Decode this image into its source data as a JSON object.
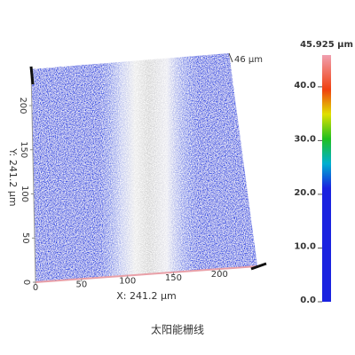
{
  "surface": {
    "height_label": "46 µm",
    "x_axis": {
      "label": "X: 241.2 µm",
      "max": 241.2,
      "ticks": [
        0,
        50,
        100,
        150,
        200
      ]
    },
    "y_axis": {
      "label": "Y: 241.2 µm",
      "max": 241.2,
      "ticks": [
        0,
        50,
        100,
        150,
        200
      ]
    }
  },
  "colorbar": {
    "max_label": "45.925 µm",
    "min": 0,
    "max": 45.925,
    "ticks": [
      {
        "value": 40,
        "label": "40.0"
      },
      {
        "value": 30,
        "label": "30.0"
      },
      {
        "value": 20,
        "label": "20.0"
      },
      {
        "value": 10,
        "label": "10.0"
      },
      {
        "value": 0,
        "label": "0.0"
      }
    ]
  },
  "caption": "太阳能栅线"
}
